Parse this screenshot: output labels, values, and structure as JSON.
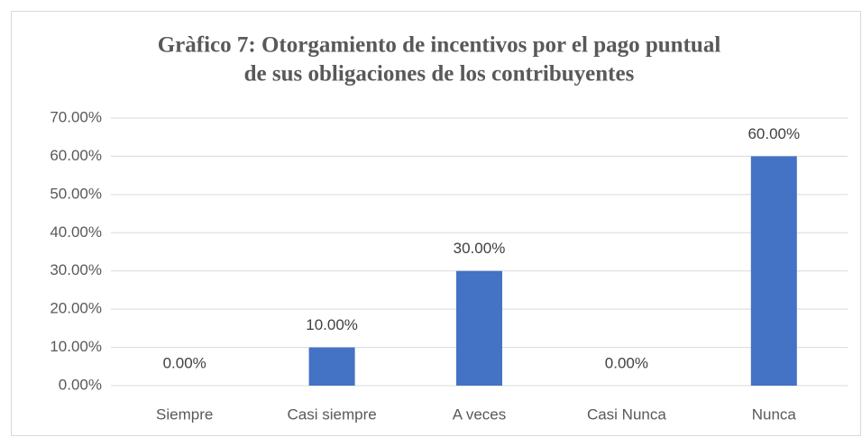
{
  "chart_data": {
    "type": "bar",
    "title": [
      "Gràfico 7: Otorgamiento de incentivos por el pago puntual",
      "de sus obligaciones de los contribuyentes"
    ],
    "categories": [
      "Siempre",
      "Casi siempre",
      "A veces",
      "Casi Nunca",
      "Nunca"
    ],
    "values": [
      0,
      10,
      30,
      0,
      60
    ],
    "value_labels": [
      "0.00%",
      "10.00%",
      "30.00%",
      "0.00%",
      "60.00%"
    ],
    "color": "#4472c4",
    "ylim": [
      0,
      70
    ],
    "yticks": [
      {
        "value": 0,
        "label": "0.00%"
      },
      {
        "value": 10,
        "label": "10.00%"
      },
      {
        "value": 20,
        "label": "20.00%"
      },
      {
        "value": 30,
        "label": "30.00%"
      },
      {
        "value": 40,
        "label": "40.00%"
      },
      {
        "value": 50,
        "label": "50.00%"
      },
      {
        "value": 60,
        "label": "60.00%"
      },
      {
        "value": 70,
        "label": "70.00%"
      }
    ],
    "grid": true
  }
}
